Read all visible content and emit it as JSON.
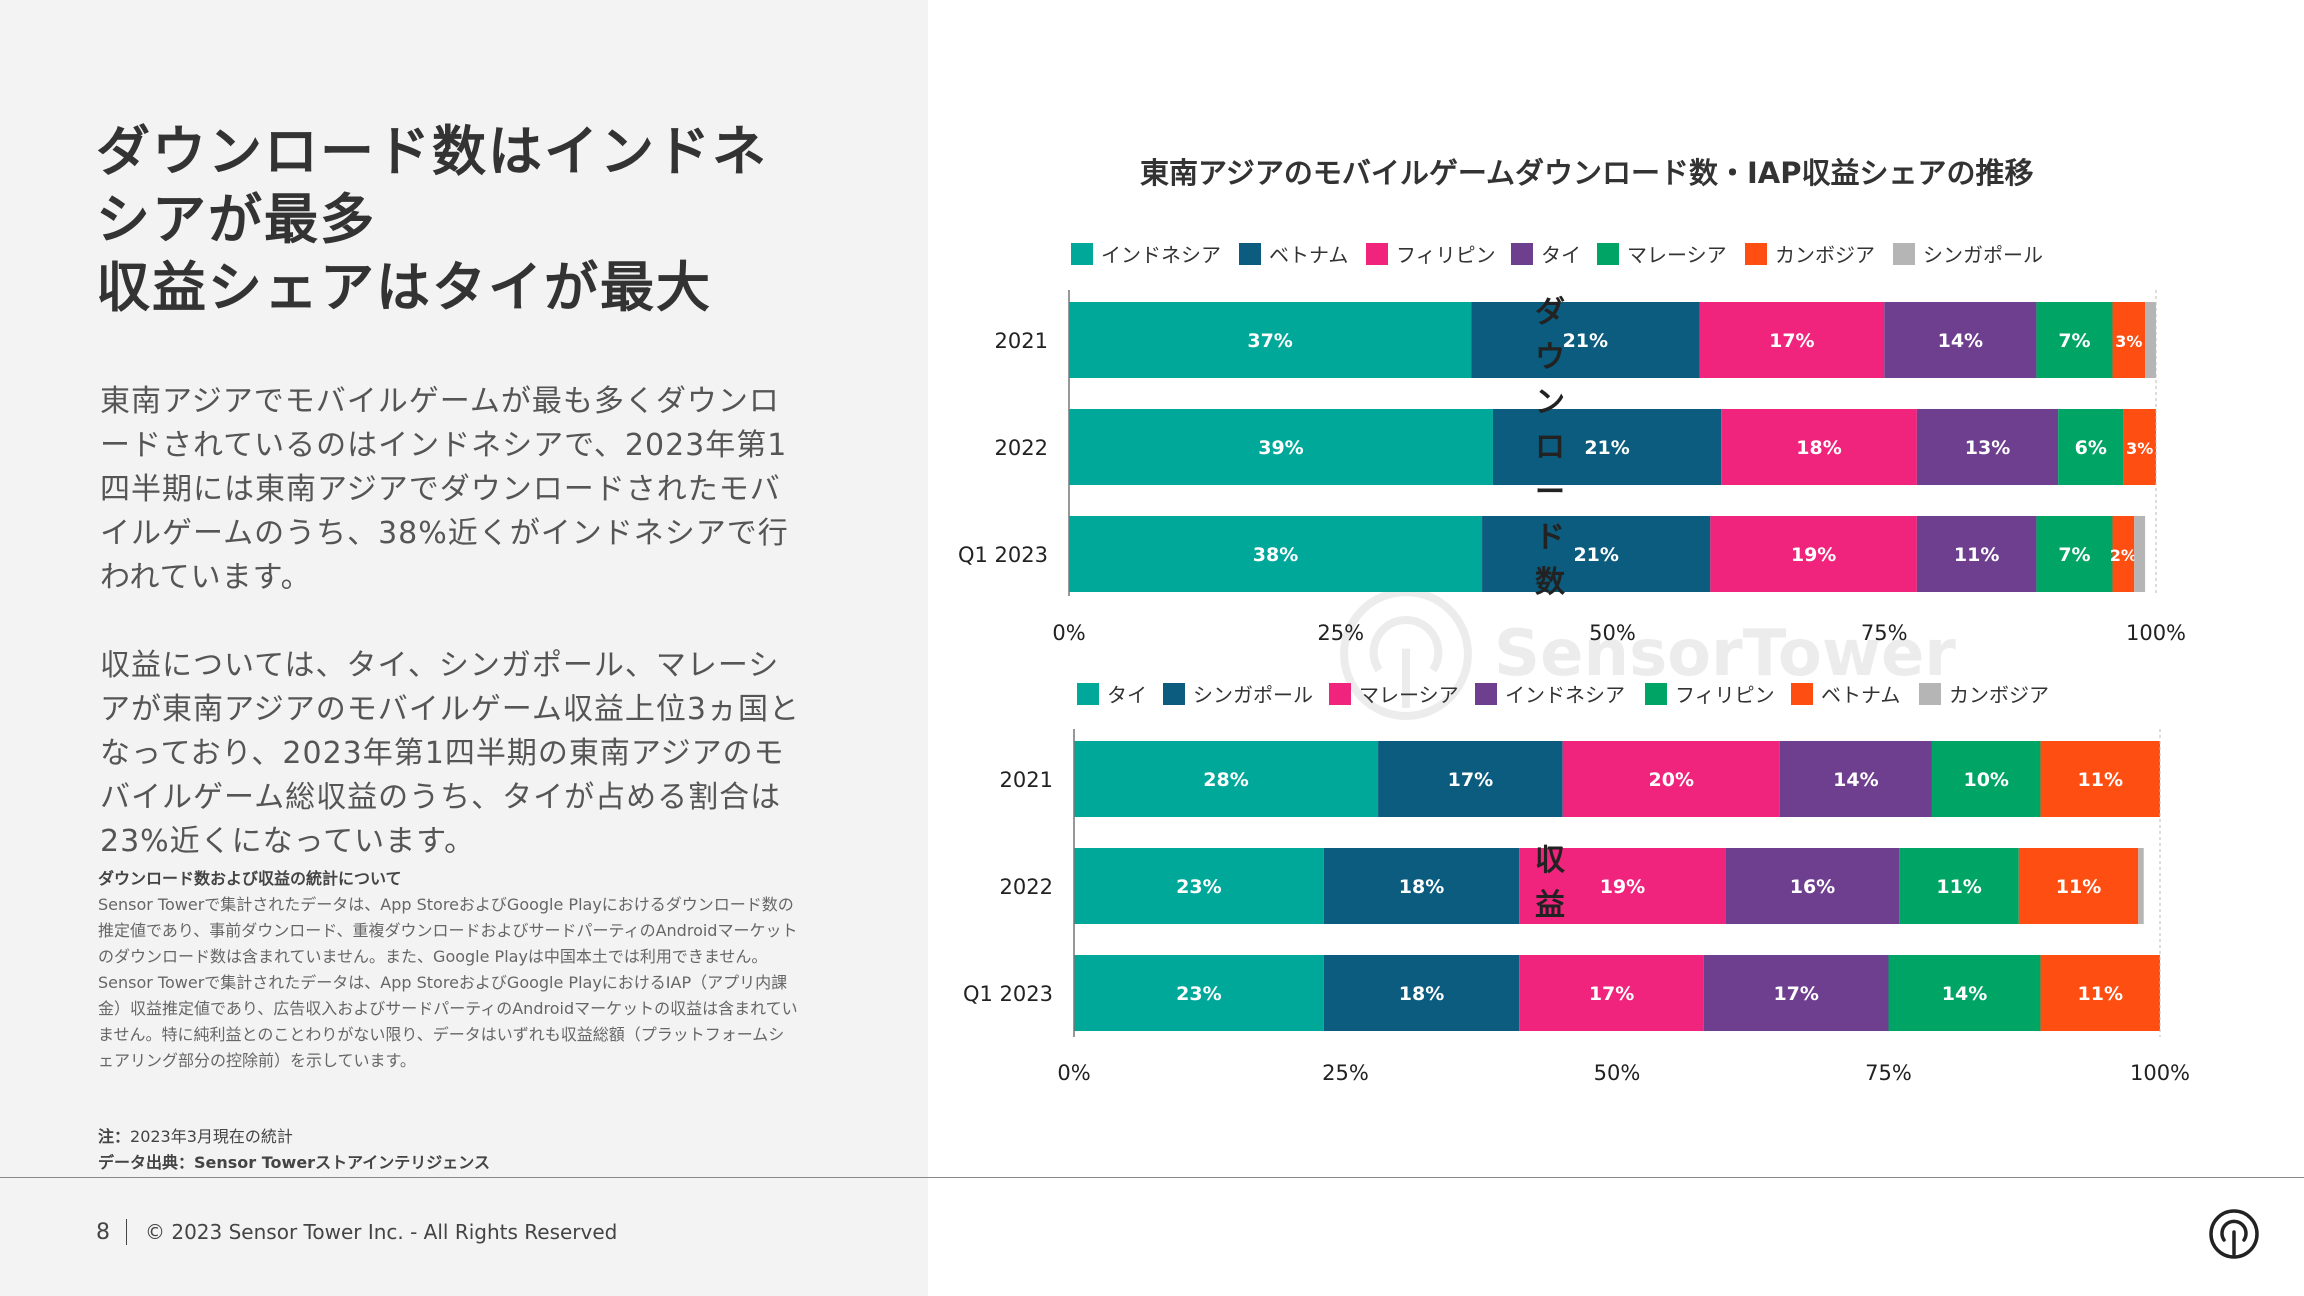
{
  "headline": {
    "line1": "ダウンロード数はインドネ",
    "line2": "シアが最多",
    "line3": "収益シェアはタイが最大"
  },
  "body": {
    "paragraph1": "東南アジアでモバイルゲームが最も多くダウンロードされているのはインドネシアで、2023年第1四半期には東南アジアでダウンロードされたモバイルゲームのうち、38%近くがインドネシアで行われています。",
    "paragraph2": "収益については、タイ、シンガポール、マレーシアが東南アジアのモバイルゲーム収益上位3ヵ国となっており、2023年第1四半期の東南アジアのモバイルゲーム総収益のうち、タイが占める割合は23%近くになっています。"
  },
  "notes": {
    "title": "ダウンロード数および収益の統計について",
    "text1": "Sensor Towerで集計されたデータは、App StoreおよびGoogle Playにおけるダウンロード数の推定値であり、事前ダウンロード、重複ダウンロードおよびサードパーティのAndroidマーケットのダウンロード数は含まれていません。また、Google Playは中国本土では利用できません。",
    "text2": "Sensor Towerで集計されたデータは、App StoreおよびGoogle PlayにおけるIAP（アプリ内課金）収益推定値であり、広告収入およびサードパーティのAndroidマーケットの収益は含まれていません。特に純利益とのことわりがない限り、データはいずれも収益総額（プラットフォームシェアリング部分の控除前）を示しています。",
    "note_label": "注：",
    "note_text": "2023年3月現在の統計",
    "source_label": "データ出典：",
    "source_text": "Sensor Towerストアインテリジェンス"
  },
  "footer": {
    "page": "8",
    "copyright": "© 2023 Sensor Tower Inc. - All Rights Reserved"
  },
  "watermark_text": "SensorTower",
  "chart_title": "東南アジアのモバイルゲームダウンロード数・IAP収益シェアの推移",
  "chart_data": [
    {
      "type": "bar",
      "orientation": "horizontal-stacked",
      "side_label": "ダウンロード数",
      "categories": [
        "2021",
        "2022",
        "Q1 2023"
      ],
      "xlim": [
        0,
        100
      ],
      "x_ticks": [
        "0%",
        "25%",
        "50%",
        "75%",
        "100%"
      ],
      "legend_position": "top",
      "series": [
        {
          "name": "インドネシア",
          "color": "#00a89a",
          "values": [
            37,
            39,
            38
          ],
          "labels": [
            "37%",
            "39%",
            "38%"
          ]
        },
        {
          "name": "ベトナム",
          "color": "#0b5c7e",
          "values": [
            21,
            21,
            21
          ],
          "labels": [
            "21%",
            "21%",
            "21%"
          ]
        },
        {
          "name": "フィリピン",
          "color": "#f0247c",
          "values": [
            17,
            18,
            19
          ],
          "labels": [
            "17%",
            "18%",
            "19%"
          ]
        },
        {
          "name": "タイ",
          "color": "#6e3f8e",
          "values": [
            14,
            13,
            11
          ],
          "labels": [
            "14%",
            "13%",
            "11%"
          ]
        },
        {
          "name": "マレーシア",
          "color": "#00a566",
          "values": [
            7,
            6,
            7
          ],
          "labels": [
            "7%",
            "6%",
            "7%"
          ]
        },
        {
          "name": "カンボジア",
          "color": "#ff4e12",
          "values": [
            3,
            3,
            2
          ],
          "labels": [
            "3%",
            "3%",
            "2%"
          ]
        },
        {
          "name": "シンガポール",
          "color": "#b5b5b5",
          "values": [
            1,
            1,
            1
          ],
          "labels": [
            "",
            "",
            ""
          ]
        }
      ]
    },
    {
      "type": "bar",
      "orientation": "horizontal-stacked",
      "side_label": "収益",
      "categories": [
        "2021",
        "2022",
        "Q1 2023"
      ],
      "xlim": [
        0,
        100
      ],
      "x_ticks": [
        "0%",
        "25%",
        "50%",
        "75%",
        "100%"
      ],
      "legend_position": "top",
      "series": [
        {
          "name": "タイ",
          "color": "#00a89a",
          "values": [
            28,
            23,
            23
          ],
          "labels": [
            "28%",
            "23%",
            "23%"
          ]
        },
        {
          "name": "シンガポール",
          "color": "#0b5c7e",
          "values": [
            17,
            18,
            18
          ],
          "labels": [
            "17%",
            "18%",
            "18%"
          ]
        },
        {
          "name": "マレーシア",
          "color": "#f0247c",
          "values": [
            20,
            19,
            17
          ],
          "labels": [
            "20%",
            "19%",
            "17%"
          ]
        },
        {
          "name": "インドネシア",
          "color": "#6e3f8e",
          "values": [
            14,
            16,
            17
          ],
          "labels": [
            "14%",
            "16%",
            "17%"
          ]
        },
        {
          "name": "フィリピン",
          "color": "#00a566",
          "values": [
            10,
            11,
            14
          ],
          "labels": [
            "10%",
            "11%",
            "14%"
          ]
        },
        {
          "name": "ベトナム",
          "color": "#ff4e12",
          "values": [
            11,
            11,
            11
          ],
          "labels": [
            "11%",
            "11%",
            "11%"
          ]
        },
        {
          "name": "カンボジア",
          "color": "#b5b5b5",
          "values": [
            0.5,
            0.5,
            0.5
          ],
          "labels": [
            "",
            "",
            ""
          ]
        }
      ]
    }
  ]
}
